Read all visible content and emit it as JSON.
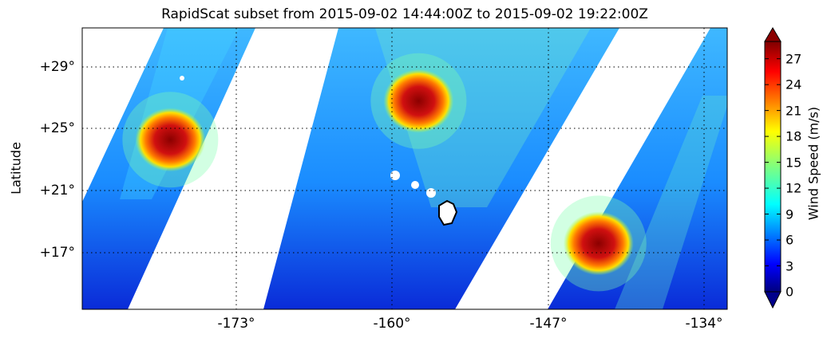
{
  "title": "RapidScat subset from 2015-09-02 14:44:00Z to 2015-09-02 19:22:00Z",
  "y_axis_label": "Latitude",
  "latitude_labels": [
    "+29°",
    "+25°",
    "+21°",
    "+17°"
  ],
  "longitude_labels": [
    "-173°",
    "-160°",
    "-147°",
    "-134°"
  ],
  "colorbar": {
    "label": "Wind Speed (m/s)",
    "tick_labels": [
      "27",
      "24",
      "21",
      "18",
      "15",
      "12",
      "9",
      "6",
      "3",
      "0"
    ],
    "colormap": "jet",
    "range": [
      0,
      29
    ]
  },
  "colors": {
    "land": "#000000",
    "background": "#ffffff"
  },
  "features": {
    "storms": [
      {
        "lon": -178.5,
        "lat": 24.3,
        "peak_wind": 26
      },
      {
        "lon": -157.8,
        "lat": 26.8,
        "peak_wind": 27
      },
      {
        "lon": -142.8,
        "lat": 17.6,
        "peak_wind": 27
      }
    ],
    "islands": [
      "Hawaii"
    ]
  }
}
